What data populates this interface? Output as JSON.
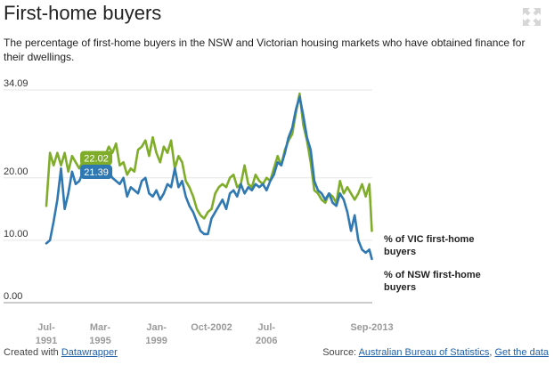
{
  "header": {
    "title": "First-home buyers",
    "subtitle": "The percentage of first-home buyers in the NSW and Victorian housing markets who have obtained finance for their dwellings."
  },
  "footer": {
    "created_prefix": "Created with",
    "created_link": "Datawrapper",
    "source_prefix": "Source:",
    "source_link": "Australian Bureau of Statistics",
    "separator": ",",
    "data_link": "Get the data"
  },
  "icons": {
    "fullscreen": "fullscreen-icon"
  },
  "colors": {
    "vic": "#7fad2a",
    "nsw": "#2f78b2",
    "grid": "#e6e6e6",
    "baseline": "#999999"
  },
  "chart_data": {
    "type": "line",
    "title": "First-home buyers",
    "xlabel": "",
    "ylabel": "",
    "x_range": [
      1991.5,
      2013.7
    ],
    "ylim": [
      0,
      34.09
    ],
    "y_ticks": [
      {
        "value": 34.09,
        "label": "34.09"
      },
      {
        "value": 20,
        "label": "20.00"
      },
      {
        "value": 10,
        "label": "10.00"
      },
      {
        "value": 0,
        "label": "0.00"
      }
    ],
    "x_ticks": [
      {
        "value": 1991.5,
        "line1": "Jul-",
        "line2": "1991"
      },
      {
        "value": 1995.17,
        "line1": "Mar-",
        "line2": "1995"
      },
      {
        "value": 1999.0,
        "line1": "Jan-",
        "line2": "1999"
      },
      {
        "value": 2002.75,
        "line1": "Oct-2002",
        "line2": ""
      },
      {
        "value": 2006.5,
        "line1": "Jul-",
        "line2": "2006"
      },
      {
        "value": 2013.67,
        "line1": "Sep-2013",
        "line2": ""
      }
    ],
    "highlight_x": 1994.9,
    "series": [
      {
        "name": "% of VIC first-home buyers",
        "label_line1": "% of VIC first-home",
        "label_line2": "buyers",
        "highlight_value": "22.02",
        "points": [
          [
            1991.5,
            15.5
          ],
          [
            1991.75,
            24.0
          ],
          [
            1992.0,
            22.0
          ],
          [
            1992.25,
            24.0
          ],
          [
            1992.5,
            22.0
          ],
          [
            1992.75,
            24.0
          ],
          [
            1993.0,
            21.0
          ],
          [
            1993.25,
            23.5
          ],
          [
            1993.5,
            22.5
          ],
          [
            1993.75,
            21.5
          ],
          [
            1994.0,
            22.8
          ],
          [
            1994.25,
            22.0
          ],
          [
            1994.5,
            23.0
          ],
          [
            1994.75,
            22.0
          ],
          [
            1995.0,
            23.5
          ],
          [
            1995.25,
            22.5
          ],
          [
            1995.5,
            23.5
          ],
          [
            1995.75,
            25.0
          ],
          [
            1996.0,
            24.0
          ],
          [
            1996.25,
            25.5
          ],
          [
            1996.5,
            22.0
          ],
          [
            1996.75,
            22.5
          ],
          [
            1997.0,
            20.5
          ],
          [
            1997.25,
            21.5
          ],
          [
            1997.5,
            21.0
          ],
          [
            1997.75,
            24.5
          ],
          [
            1998.0,
            25.0
          ],
          [
            1998.25,
            26.0
          ],
          [
            1998.5,
            23.5
          ],
          [
            1998.75,
            26.5
          ],
          [
            1999.0,
            24.0
          ],
          [
            1999.25,
            22.5
          ],
          [
            1999.5,
            25.0
          ],
          [
            1999.75,
            24.0
          ],
          [
            2000.0,
            26.0
          ],
          [
            2000.25,
            21.5
          ],
          [
            2000.5,
            23.5
          ],
          [
            2000.75,
            22.5
          ],
          [
            2001.0,
            19.5
          ],
          [
            2001.25,
            18.5
          ],
          [
            2001.5,
            17.0
          ],
          [
            2001.75,
            15.0
          ],
          [
            2002.0,
            14.0
          ],
          [
            2002.25,
            13.5
          ],
          [
            2002.5,
            14.5
          ],
          [
            2002.75,
            15.0
          ],
          [
            2003.0,
            17.5
          ],
          [
            2003.25,
            18.5
          ],
          [
            2003.5,
            19.0
          ],
          [
            2003.75,
            18.5
          ],
          [
            2004.0,
            20.0
          ],
          [
            2004.25,
            20.5
          ],
          [
            2004.5,
            18.5
          ],
          [
            2004.75,
            19.0
          ],
          [
            2005.0,
            22.0
          ],
          [
            2005.25,
            19.0
          ],
          [
            2005.5,
            18.5
          ],
          [
            2005.75,
            20.5
          ],
          [
            2006.0,
            19.5
          ],
          [
            2006.25,
            19.0
          ],
          [
            2006.5,
            20.0
          ],
          [
            2006.75,
            19.5
          ],
          [
            2007.0,
            21.5
          ],
          [
            2007.25,
            23.5
          ],
          [
            2007.5,
            22.0
          ],
          [
            2007.75,
            24.5
          ],
          [
            2008.0,
            26.0
          ],
          [
            2008.25,
            27.0
          ],
          [
            2008.5,
            30.5
          ],
          [
            2008.75,
            33.5
          ],
          [
            2009.0,
            28.5
          ],
          [
            2009.25,
            26.0
          ],
          [
            2009.5,
            22.5
          ],
          [
            2009.75,
            18.0
          ],
          [
            2010.0,
            17.5
          ],
          [
            2010.25,
            16.5
          ],
          [
            2010.5,
            16.0
          ],
          [
            2010.75,
            17.5
          ],
          [
            2011.0,
            17.0
          ],
          [
            2011.25,
            16.0
          ],
          [
            2011.5,
            19.5
          ],
          [
            2011.75,
            17.5
          ],
          [
            2012.0,
            18.5
          ],
          [
            2012.25,
            17.5
          ],
          [
            2012.5,
            16.5
          ],
          [
            2012.75,
            17.5
          ],
          [
            2013.0,
            19.0
          ],
          [
            2013.25,
            17.0
          ],
          [
            2013.5,
            19.0
          ],
          [
            2013.67,
            11.5
          ]
        ]
      },
      {
        "name": "% of NSW first-home buyers",
        "label_line1": "% of NSW first-home",
        "label_line2": "buyers",
        "highlight_value": "21.39",
        "points": [
          [
            1991.5,
            9.5
          ],
          [
            1991.75,
            10.0
          ],
          [
            1992.0,
            13.0
          ],
          [
            1992.25,
            16.5
          ],
          [
            1992.5,
            21.5
          ],
          [
            1992.75,
            15.0
          ],
          [
            1993.0,
            17.5
          ],
          [
            1993.25,
            21.0
          ],
          [
            1993.5,
            19.0
          ],
          [
            1993.75,
            19.5
          ],
          [
            1994.0,
            21.0
          ],
          [
            1994.25,
            20.0
          ],
          [
            1994.5,
            21.0
          ],
          [
            1994.75,
            20.0
          ],
          [
            1995.0,
            21.4
          ],
          [
            1995.25,
            20.5
          ],
          [
            1995.5,
            21.5
          ],
          [
            1995.75,
            21.0
          ],
          [
            1996.0,
            20.0
          ],
          [
            1996.25,
            19.5
          ],
          [
            1996.5,
            19.0
          ],
          [
            1996.75,
            20.0
          ],
          [
            1997.0,
            17.0
          ],
          [
            1997.25,
            18.5
          ],
          [
            1997.5,
            18.0
          ],
          [
            1997.75,
            17.5
          ],
          [
            1998.0,
            19.5
          ],
          [
            1998.25,
            20.0
          ],
          [
            1998.5,
            17.5
          ],
          [
            1998.75,
            17.0
          ],
          [
            1999.0,
            18.0
          ],
          [
            1999.25,
            16.5
          ],
          [
            1999.5,
            17.5
          ],
          [
            1999.75,
            19.0
          ],
          [
            2000.0,
            18.5
          ],
          [
            2000.25,
            21.5
          ],
          [
            2000.5,
            18.5
          ],
          [
            2000.75,
            19.5
          ],
          [
            2001.0,
            17.0
          ],
          [
            2001.25,
            15.5
          ],
          [
            2001.5,
            14.5
          ],
          [
            2001.75,
            13.0
          ],
          [
            2002.0,
            11.5
          ],
          [
            2002.25,
            11.0
          ],
          [
            2002.5,
            11.0
          ],
          [
            2002.75,
            13.5
          ],
          [
            2003.0,
            14.5
          ],
          [
            2003.25,
            15.5
          ],
          [
            2003.5,
            16.5
          ],
          [
            2003.75,
            15.0
          ],
          [
            2004.0,
            17.5
          ],
          [
            2004.25,
            18.0
          ],
          [
            2004.5,
            17.0
          ],
          [
            2004.75,
            19.0
          ],
          [
            2005.0,
            17.5
          ],
          [
            2005.25,
            18.5
          ],
          [
            2005.5,
            18.0
          ],
          [
            2005.75,
            19.0
          ],
          [
            2006.0,
            18.5
          ],
          [
            2006.25,
            19.0
          ],
          [
            2006.5,
            18.0
          ],
          [
            2006.75,
            19.5
          ],
          [
            2007.0,
            20.5
          ],
          [
            2007.25,
            22.5
          ],
          [
            2007.5,
            22.0
          ],
          [
            2007.75,
            24.0
          ],
          [
            2008.0,
            26.5
          ],
          [
            2008.25,
            28.0
          ],
          [
            2008.5,
            31.0
          ],
          [
            2008.75,
            33.0
          ],
          [
            2009.0,
            30.0
          ],
          [
            2009.25,
            26.5
          ],
          [
            2009.5,
            24.5
          ],
          [
            2009.75,
            19.5
          ],
          [
            2010.0,
            18.0
          ],
          [
            2010.25,
            17.5
          ],
          [
            2010.5,
            16.5
          ],
          [
            2010.75,
            17.5
          ],
          [
            2011.0,
            16.0
          ],
          [
            2011.25,
            15.5
          ],
          [
            2011.5,
            17.5
          ],
          [
            2011.75,
            16.5
          ],
          [
            2012.0,
            14.5
          ],
          [
            2012.25,
            11.5
          ],
          [
            2012.5,
            14.0
          ],
          [
            2012.75,
            10.0
          ],
          [
            2013.0,
            8.5
          ],
          [
            2013.25,
            8.0
          ],
          [
            2013.5,
            8.5
          ],
          [
            2013.67,
            7.0
          ]
        ]
      }
    ]
  }
}
